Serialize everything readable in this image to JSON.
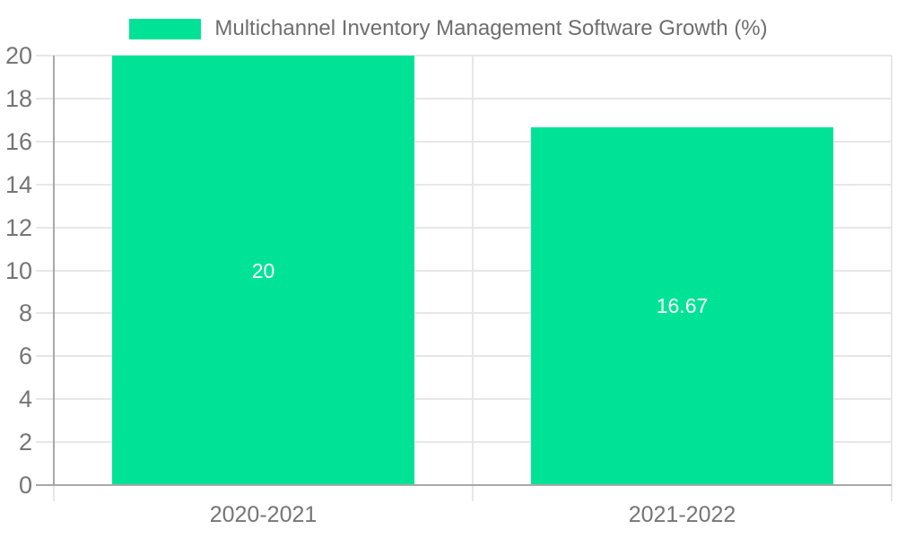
{
  "legend": {
    "label": "Multichannel Inventory Management Software Growth (%)",
    "swatch_color": "#00E396"
  },
  "chart_data": {
    "type": "bar",
    "title": "Multichannel Inventory Management Software Growth (%)",
    "categories": [
      "2020-2021",
      "2021-2022"
    ],
    "series": [
      {
        "name": "Multichannel Inventory Management Software Growth (%)",
        "values": [
          20,
          16.67
        ],
        "color": "#00E396"
      }
    ],
    "bar_labels": [
      "20",
      "16.67"
    ],
    "xlabel": "",
    "ylabel": "",
    "ylim": [
      0,
      20
    ],
    "yticks": [
      0,
      2,
      4,
      6,
      8,
      10,
      12,
      14,
      16,
      18,
      20
    ],
    "grid": true,
    "legend_position": "top"
  },
  "colors": {
    "bar": "#00E396",
    "grid": "#e7e7e7",
    "axis": "#a8a8a8",
    "tick_text": "#757575",
    "legend_text": "#6e6e6e",
    "bar_label_text": "#ffffff",
    "background": "#ffffff"
  }
}
